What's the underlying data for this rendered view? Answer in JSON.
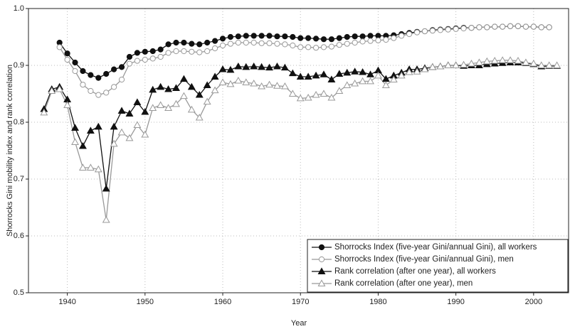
{
  "chart_data": {
    "type": "line",
    "xlabel": "Year",
    "ylabel": "Shorrocks Gini mobility index and rank correlation",
    "x": [
      1937,
      1938,
      1939,
      1940,
      1941,
      1942,
      1943,
      1944,
      1945,
      1946,
      1947,
      1948,
      1949,
      1950,
      1951,
      1952,
      1953,
      1954,
      1955,
      1956,
      1957,
      1958,
      1959,
      1960,
      1961,
      1962,
      1963,
      1964,
      1965,
      1966,
      1967,
      1968,
      1969,
      1970,
      1971,
      1972,
      1973,
      1974,
      1975,
      1976,
      1977,
      1978,
      1979,
      1980,
      1981,
      1982,
      1983,
      1984,
      1985,
      1986,
      1987,
      1988,
      1989,
      1990,
      1991,
      1992,
      1993,
      1994,
      1995,
      1996,
      1997,
      1998,
      1999,
      2000,
      2001,
      2002,
      2003
    ],
    "series": [
      {
        "name": "Shorrocks Index (five-year Gini/annual Gini), all workers",
        "color": "#111111",
        "marker": "circle",
        "filled": true,
        "values": [
          null,
          null,
          0.94,
          0.921,
          0.905,
          0.89,
          0.883,
          0.878,
          0.885,
          0.893,
          0.897,
          0.915,
          0.922,
          0.924,
          0.925,
          0.928,
          0.937,
          0.94,
          0.94,
          0.938,
          0.937,
          0.94,
          0.943,
          0.947,
          0.95,
          0.951,
          0.952,
          0.952,
          0.952,
          0.952,
          0.951,
          0.951,
          0.95,
          0.948,
          0.948,
          0.947,
          0.946,
          0.946,
          0.948,
          0.95,
          0.951,
          0.951,
          0.952,
          0.952,
          0.952,
          0.953,
          0.955,
          0.957,
          0.959,
          0.96,
          0.962,
          0.963,
          0.964,
          0.965,
          0.966,
          0.966,
          0.967,
          0.967,
          0.968,
          0.968,
          0.969,
          0.969,
          0.968,
          0.968,
          0.967,
          0.967,
          null
        ]
      },
      {
        "name": "Shorrocks Index (five-year Gini/annual Gini), men",
        "color": "#999999",
        "marker": "circle",
        "filled": false,
        "values": [
          null,
          null,
          0.932,
          0.91,
          0.89,
          0.866,
          0.855,
          0.848,
          0.852,
          0.862,
          0.875,
          0.903,
          0.908,
          0.91,
          0.912,
          0.915,
          0.922,
          0.925,
          0.925,
          0.924,
          0.923,
          0.925,
          0.93,
          0.935,
          0.938,
          0.94,
          0.94,
          0.94,
          0.939,
          0.939,
          0.938,
          0.937,
          0.935,
          0.932,
          0.932,
          0.931,
          0.932,
          0.933,
          0.936,
          0.938,
          0.94,
          0.942,
          0.943,
          0.944,
          0.945,
          0.948,
          0.952,
          0.955,
          0.958,
          0.96,
          0.961,
          0.962,
          0.963,
          0.964,
          0.965,
          0.966,
          0.967,
          0.967,
          0.968,
          0.968,
          0.969,
          0.969,
          0.968,
          0.968,
          0.967,
          0.967,
          null
        ]
      },
      {
        "name": "Rank correlation (after one year), all workers",
        "color": "#111111",
        "marker": "triangle",
        "filled": true,
        "values": [
          0.823,
          0.858,
          0.862,
          0.84,
          0.79,
          0.758,
          0.785,
          0.792,
          0.683,
          0.792,
          0.82,
          0.815,
          0.835,
          0.818,
          0.857,
          0.862,
          0.858,
          0.86,
          0.876,
          0.862,
          0.848,
          0.865,
          0.88,
          0.893,
          0.892,
          0.898,
          0.897,
          0.898,
          0.897,
          0.896,
          0.898,
          0.896,
          0.886,
          0.88,
          0.88,
          0.882,
          0.884,
          0.875,
          0.885,
          0.887,
          0.889,
          0.888,
          0.884,
          0.891,
          0.876,
          0.882,
          0.887,
          0.893,
          0.893,
          0.895,
          0.897,
          0.898,
          0.9,
          0.9,
          0.899,
          0.9,
          0.9,
          0.902,
          0.903,
          0.904,
          0.905,
          0.905,
          0.904,
          0.902,
          0.898,
          0.899,
          0.899
        ]
      },
      {
        "name": "Rank correlation (after one year), men",
        "color": "#999999",
        "marker": "triangle",
        "filled": false,
        "values": [
          0.817,
          0.855,
          0.858,
          0.83,
          0.765,
          0.72,
          0.72,
          0.717,
          0.628,
          0.762,
          0.782,
          0.772,
          0.795,
          0.778,
          0.825,
          0.83,
          0.825,
          0.832,
          0.846,
          0.822,
          0.808,
          0.836,
          0.856,
          0.87,
          0.867,
          0.873,
          0.87,
          0.868,
          0.863,
          0.866,
          0.864,
          0.863,
          0.85,
          0.842,
          0.843,
          0.848,
          0.85,
          0.843,
          0.855,
          0.865,
          0.868,
          0.872,
          0.872,
          0.882,
          0.865,
          0.875,
          0.882,
          0.888,
          0.889,
          0.893,
          0.897,
          0.898,
          0.9,
          0.9,
          0.901,
          0.903,
          0.905,
          0.907,
          0.908,
          0.909,
          0.909,
          0.908,
          0.905,
          0.903,
          0.9,
          0.9,
          0.9
        ]
      }
    ],
    "xlim": [
      1935,
      2004.5
    ],
    "xticks": [
      1940,
      1950,
      1960,
      1970,
      1980,
      1990,
      2000
    ],
    "ylim": [
      0.5,
      1
    ],
    "yticks": [
      0.5,
      0.6,
      0.7,
      0.8,
      0.9,
      {
        "value": 1,
        "label": "1.0"
      }
    ],
    "grid": true,
    "legend": "lower right"
  }
}
